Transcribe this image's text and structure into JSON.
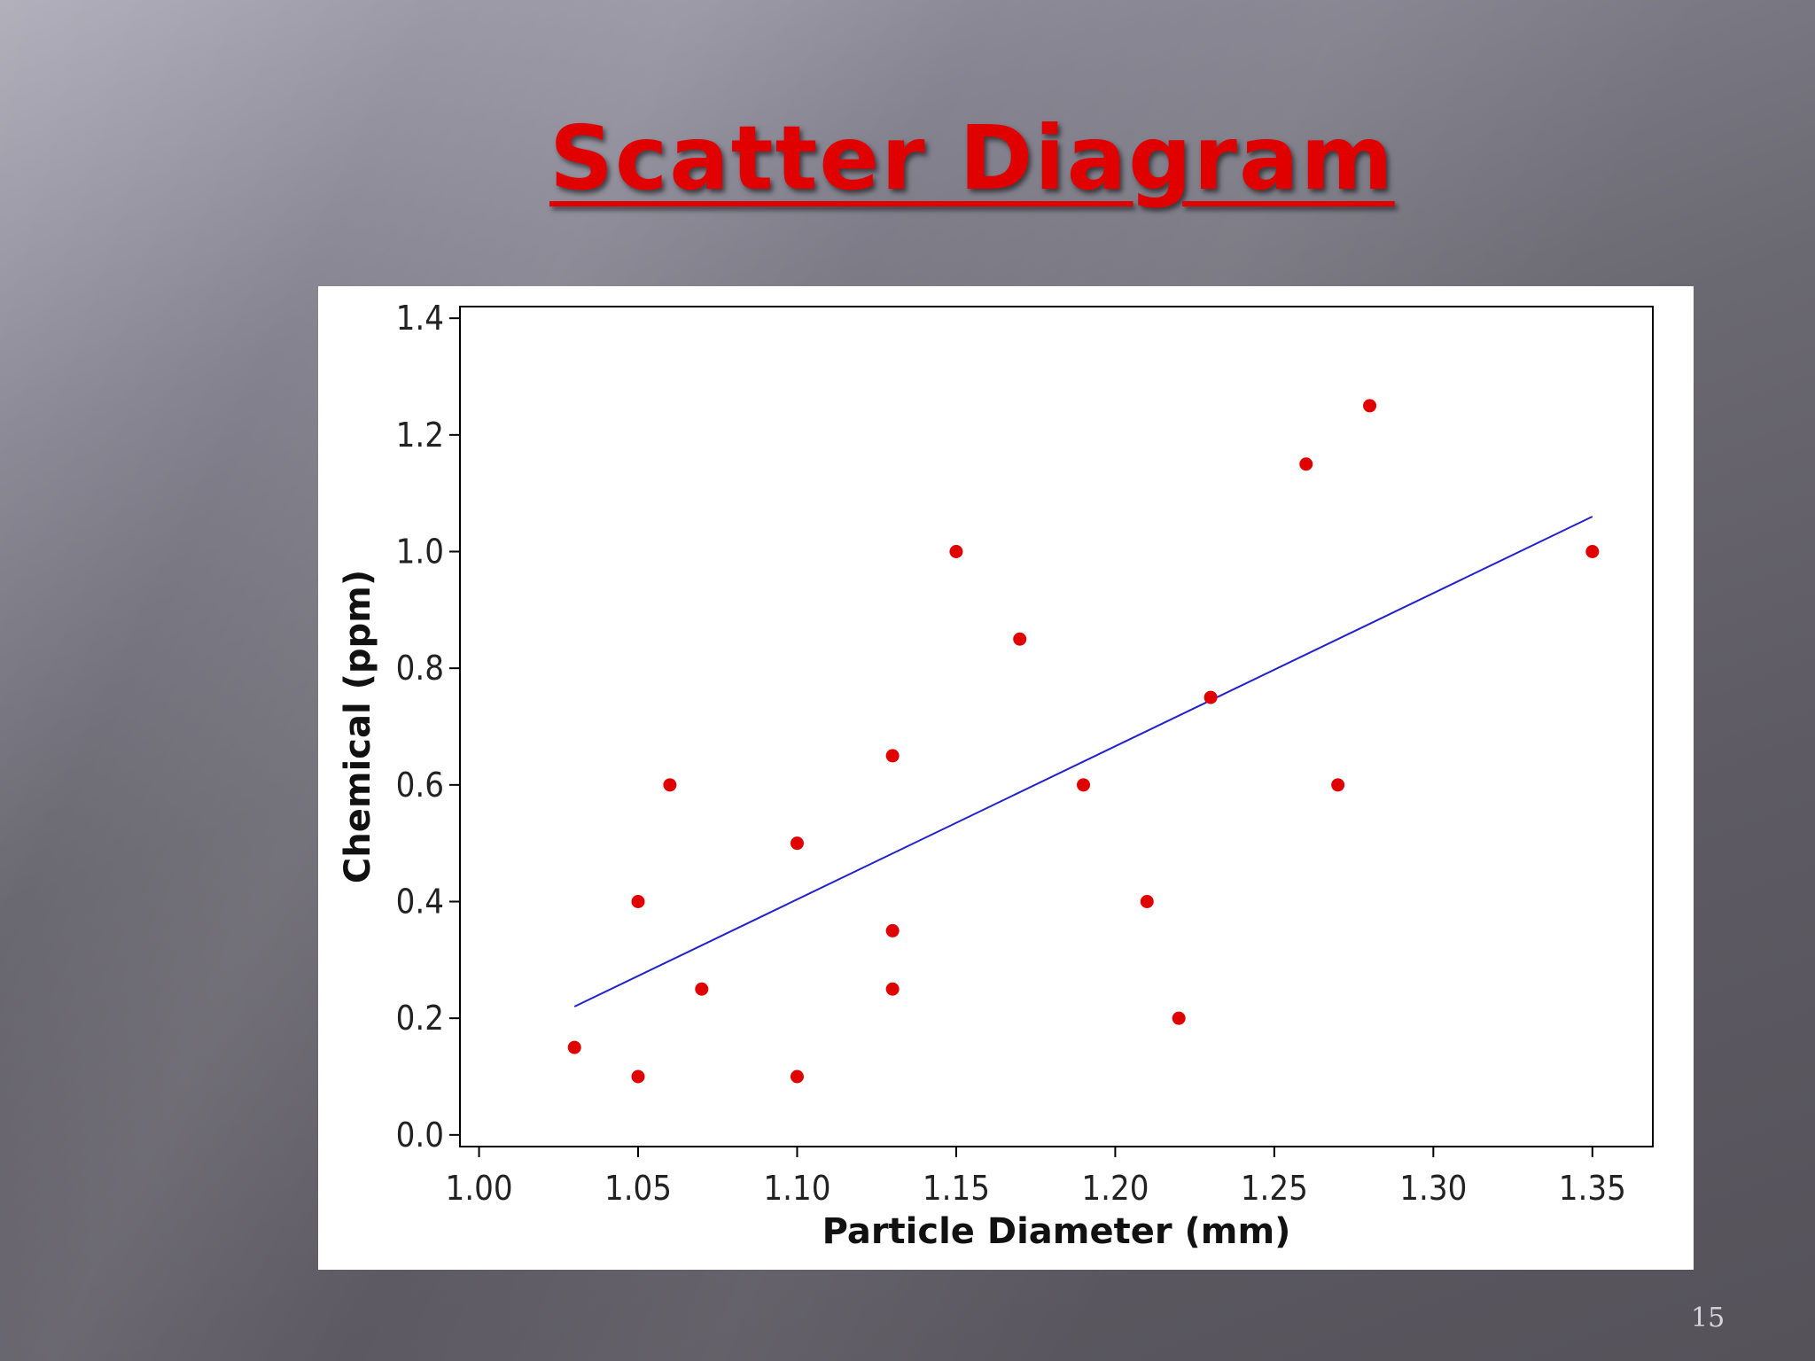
{
  "slide": {
    "title": "Scatter Diagram",
    "page_number": "15"
  },
  "colors": {
    "title": "#e00000",
    "points": "#e00000",
    "trendline": "#2020d0"
  },
  "chart_data": {
    "type": "scatter",
    "title": "",
    "xlabel": "Particle Diameter (mm)",
    "ylabel": "Chemical (ppm)",
    "xlim": [
      0.994,
      1.369
    ],
    "ylim": [
      -0.02,
      1.42
    ],
    "x_ticks": [
      1.0,
      1.05,
      1.1,
      1.15,
      1.2,
      1.25,
      1.3,
      1.35
    ],
    "x_tick_labels": [
      "1.00",
      "1.05",
      "1.10",
      "1.15",
      "1.20",
      "1.25",
      "1.30",
      "1.35"
    ],
    "y_ticks": [
      0.0,
      0.2,
      0.4,
      0.6,
      0.8,
      1.0,
      1.2,
      1.4
    ],
    "y_tick_labels": [
      "0.0",
      "0.2",
      "0.4",
      "0.6",
      "0.8",
      "1.0",
      "1.2",
      "1.4"
    ],
    "grid": false,
    "series": [
      {
        "points": [
          [
            1.03,
            0.15
          ],
          [
            1.05,
            0.4
          ],
          [
            1.05,
            0.1
          ],
          [
            1.06,
            0.6
          ],
          [
            1.07,
            0.25
          ],
          [
            1.1,
            0.5
          ],
          [
            1.1,
            0.1
          ],
          [
            1.13,
            0.65
          ],
          [
            1.13,
            0.35
          ],
          [
            1.13,
            0.25
          ],
          [
            1.15,
            1.0
          ],
          [
            1.17,
            0.85
          ],
          [
            1.19,
            0.6
          ],
          [
            1.21,
            0.4
          ],
          [
            1.22,
            0.2
          ],
          [
            1.23,
            0.75
          ],
          [
            1.26,
            1.15
          ],
          [
            1.27,
            0.6
          ],
          [
            1.28,
            1.25
          ],
          [
            1.35,
            1.0
          ]
        ]
      }
    ],
    "trendline": {
      "x": [
        1.03,
        1.35
      ],
      "y": [
        0.22,
        1.06
      ]
    }
  }
}
